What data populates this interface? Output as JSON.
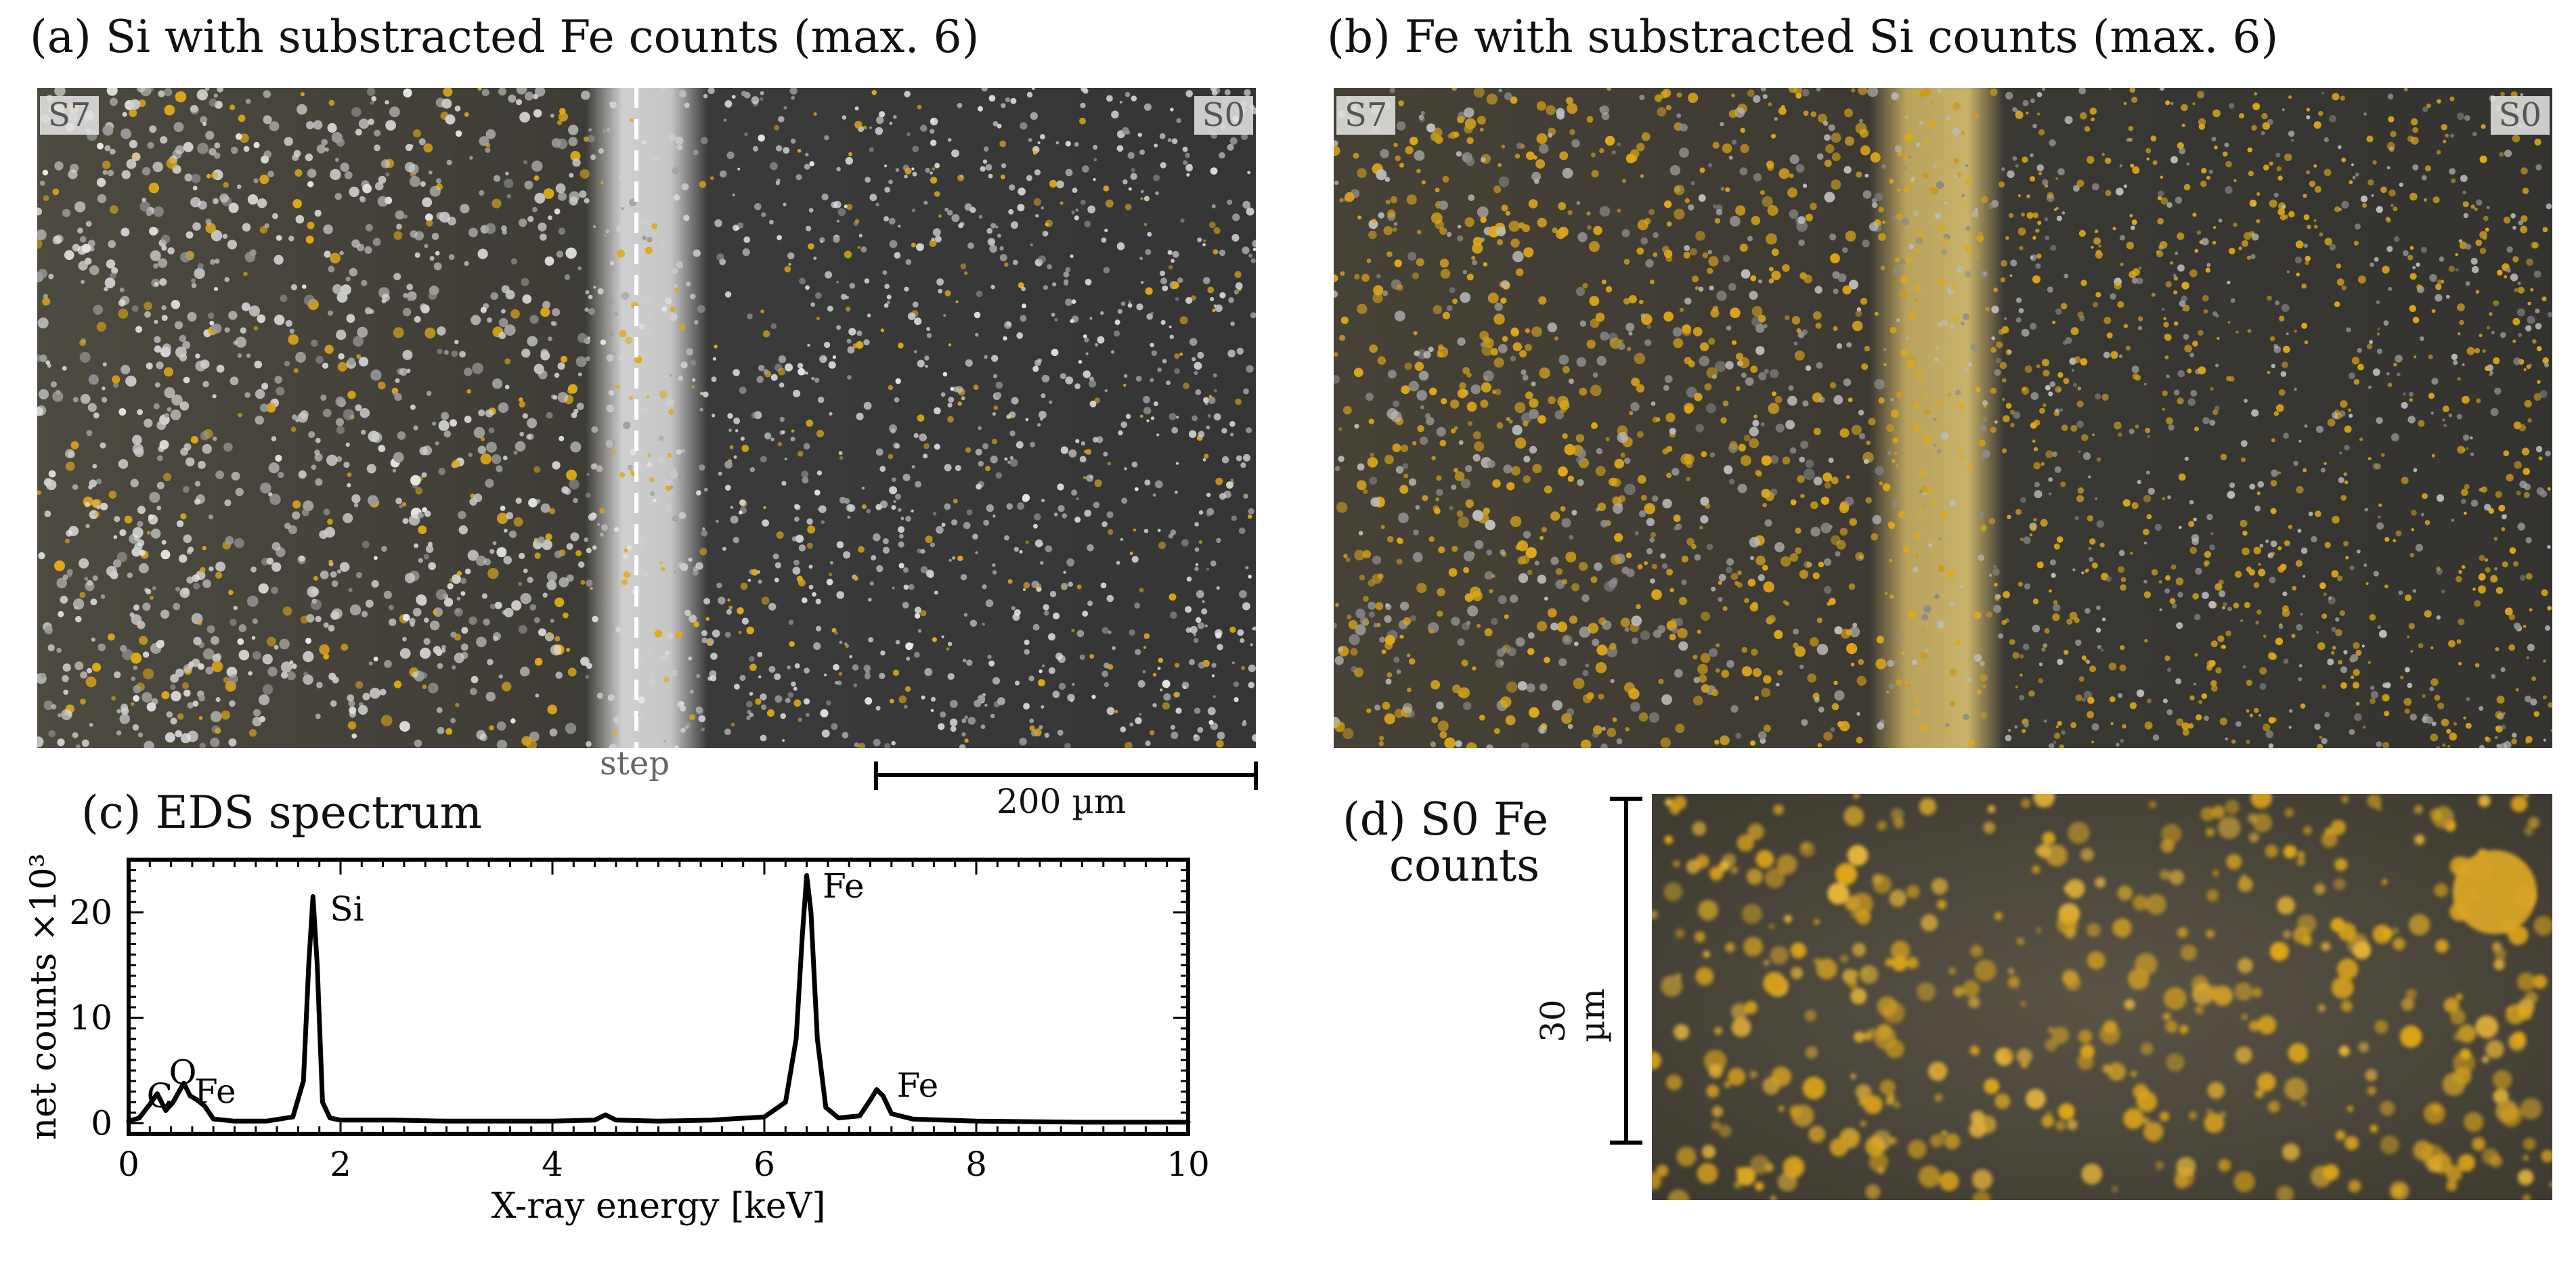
{
  "panels": {
    "a": {
      "title": "(a) Si with substracted Fe counts (max. 6)",
      "tag_left": "S7",
      "tag_right": "S0",
      "step_label": "step",
      "scale_bar_label": "200 µm"
    },
    "b": {
      "title": "(b) Fe with substracted Si counts (max. 6)",
      "tag_left": "S7",
      "tag_right": "S0"
    },
    "c": {
      "title": "(c) EDS spectrum"
    },
    "d": {
      "title_line1": "(d) S0 Fe",
      "title_line2": "counts",
      "scale_bar_label": "30 µm"
    }
  },
  "colors": {
    "fe_overlay": "#e0a818",
    "micrograph_bg": "#2e2e2e",
    "particle": "#cfcfcf",
    "line": "#000000"
  },
  "chart_data": {
    "type": "line",
    "title": "(c) EDS spectrum",
    "xlabel": "X-ray energy [keV]",
    "ylabel": "net counts ×10³",
    "xlim": [
      0,
      10
    ],
    "ylim": [
      -1,
      25
    ],
    "xticks": [
      0,
      2,
      4,
      6,
      8,
      10
    ],
    "yticks": [
      0,
      10,
      20
    ],
    "grid": false,
    "series": [
      {
        "x": [
          0.0,
          0.1,
          0.2,
          0.27,
          0.35,
          0.42,
          0.52,
          0.58,
          0.65,
          0.72,
          0.8,
          1.0,
          1.3,
          1.55,
          1.65,
          1.7,
          1.74,
          1.78,
          1.83,
          1.9,
          2.0,
          2.5,
          3.0,
          3.5,
          4.0,
          4.4,
          4.5,
          4.6,
          5.0,
          5.5,
          6.0,
          6.2,
          6.3,
          6.36,
          6.4,
          6.44,
          6.5,
          6.58,
          6.7,
          6.9,
          7.0,
          7.06,
          7.12,
          7.2,
          7.4,
          8.0,
          9.0,
          10.0
        ],
        "y": [
          0.2,
          0.5,
          1.8,
          2.8,
          1.2,
          2.0,
          3.8,
          2.6,
          2.2,
          1.6,
          0.4,
          0.2,
          0.2,
          0.6,
          4.0,
          15.0,
          21.5,
          15.0,
          2.0,
          0.5,
          0.3,
          0.3,
          0.2,
          0.2,
          0.2,
          0.3,
          0.8,
          0.3,
          0.2,
          0.3,
          0.6,
          2.0,
          8.0,
          18.0,
          23.5,
          20.0,
          8.0,
          1.5,
          0.5,
          0.7,
          2.2,
          3.2,
          2.6,
          0.9,
          0.4,
          0.2,
          0.1,
          0.1
        ]
      }
    ],
    "annotations": [
      {
        "text": "Si",
        "x": 1.9,
        "y": 20.3
      },
      {
        "text": "Fe",
        "x": 6.55,
        "y": 22.5
      },
      {
        "text": "Fe",
        "x": 7.25,
        "y": 3.6
      },
      {
        "text": "C",
        "x": 0.17,
        "y": 2.6
      },
      {
        "text": "O",
        "x": 0.38,
        "y": 4.8
      },
      {
        "text": "Fe",
        "x": 0.62,
        "y": 3.0
      }
    ]
  }
}
